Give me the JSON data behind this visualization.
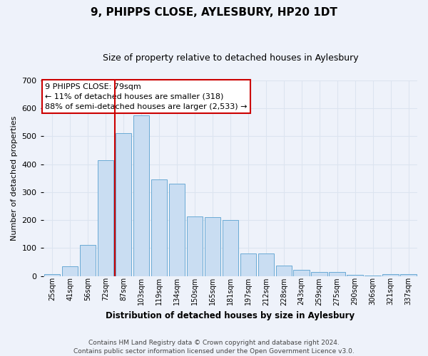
{
  "title": "9, PHIPPS CLOSE, AYLESBURY, HP20 1DT",
  "subtitle": "Size of property relative to detached houses in Aylesbury",
  "xlabel": "Distribution of detached houses by size in Aylesbury",
  "ylabel": "Number of detached properties",
  "categories": [
    "25sqm",
    "41sqm",
    "56sqm",
    "72sqm",
    "87sqm",
    "103sqm",
    "119sqm",
    "134sqm",
    "150sqm",
    "165sqm",
    "181sqm",
    "197sqm",
    "212sqm",
    "228sqm",
    "243sqm",
    "259sqm",
    "275sqm",
    "290sqm",
    "306sqm",
    "321sqm",
    "337sqm"
  ],
  "values": [
    8,
    35,
    112,
    415,
    510,
    575,
    345,
    330,
    212,
    210,
    200,
    80,
    80,
    38,
    22,
    15,
    15,
    5,
    2,
    8,
    8
  ],
  "bar_color": "#c9ddf2",
  "bar_edge_color": "#6aaad4",
  "grid_color": "#dce4f0",
  "vline_x_index": 3,
  "vline_color": "#cc0000",
  "annotation_line1": "9 PHIPPS CLOSE: 79sqm",
  "annotation_line2": "← 11% of detached houses are smaller (318)",
  "annotation_line3": "88% of semi-detached houses are larger (2,533) →",
  "annotation_box_color": "#ffffff",
  "annotation_box_edge": "#cc0000",
  "ylim": [
    0,
    700
  ],
  "yticks": [
    0,
    100,
    200,
    300,
    400,
    500,
    600,
    700
  ],
  "footer1": "Contains HM Land Registry data © Crown copyright and database right 2024.",
  "footer2": "Contains public sector information licensed under the Open Government Licence v3.0.",
  "background_color": "#eef2fa"
}
